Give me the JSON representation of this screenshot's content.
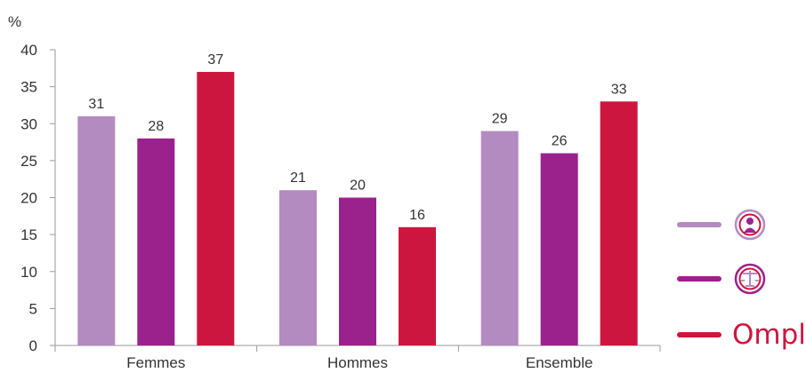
{
  "colors": {
    "series1": "#b48bc0",
    "series2": "#9b228d",
    "series3": "#cd163f"
  },
  "legend": {
    "items": [
      {
        "icon": "person-circle-icon",
        "color": "#b48bc0"
      },
      {
        "icon": "scales-of-justice-icon",
        "color": "#9b228d"
      },
      {
        "icon": "ompl-logo",
        "logo_text": "Ompl",
        "color": "#cd163f"
      }
    ]
  },
  "chart_data": {
    "type": "bar",
    "title": "",
    "xlabel": "",
    "ylabel": "%",
    "categories": [
      "Femmes",
      "Hommes",
      "Ensemble"
    ],
    "yticks": [
      0,
      5,
      10,
      15,
      20,
      25,
      30,
      35,
      40
    ],
    "ylim": [
      0,
      40
    ],
    "grid": false,
    "legend_position": "right",
    "series": [
      {
        "values": [
          31,
          21,
          29
        ]
      },
      {
        "values": [
          28,
          20,
          26
        ]
      },
      {
        "values": [
          37,
          16,
          33
        ]
      }
    ]
  }
}
